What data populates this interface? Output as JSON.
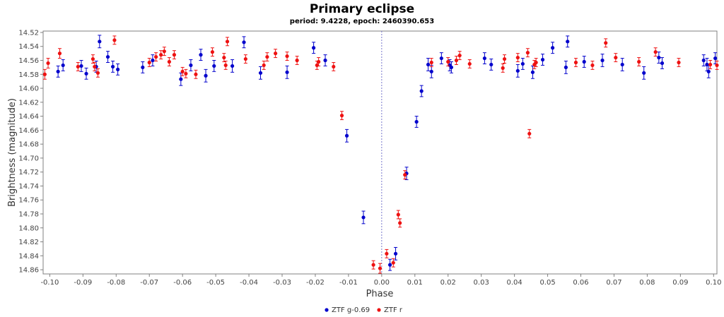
{
  "chart_data": {
    "type": "scatter",
    "title": "Primary eclipse",
    "subtitle": "period: 9.4228, epoch: 2460390.653",
    "xlabel": "Phase",
    "ylabel": "Brightness (magnitude)",
    "xlim": [
      -0.102,
      0.101
    ],
    "ylim": [
      14.866,
      14.518
    ],
    "y_inverted": true,
    "x_ticks": [
      -0.1,
      -0.09,
      -0.08,
      -0.07,
      -0.06,
      -0.05,
      -0.04,
      -0.03,
      -0.02,
      -0.01,
      0.0,
      0.01,
      0.02,
      0.03,
      0.04,
      0.05,
      0.06,
      0.07,
      0.08,
      0.09,
      0.1
    ],
    "x_tick_labels": [
      "-0.10",
      "-0.09",
      "-0.08",
      "-0.07",
      "-0.06",
      "-0.05",
      "-0.04",
      "-0.03",
      "-0.02",
      "-0.01",
      "0.00",
      "0.01",
      "0.02",
      "0.03",
      "0.04",
      "0.05",
      "0.06",
      "0.07",
      "0.08",
      "0.09",
      "0.10"
    ],
    "y_ticks": [
      14.52,
      14.54,
      14.56,
      14.58,
      14.6,
      14.62,
      14.64,
      14.66,
      14.68,
      14.7,
      14.72,
      14.74,
      14.76,
      14.78,
      14.8,
      14.82,
      14.84,
      14.86
    ],
    "y_tick_labels": [
      "14.52",
      "14.54",
      "14.56",
      "14.58",
      "14.60",
      "14.62",
      "14.64",
      "14.66",
      "14.68",
      "14.70",
      "14.72",
      "14.74",
      "14.76",
      "14.78",
      "14.80",
      "14.82",
      "14.84",
      "14.86"
    ],
    "grid": false,
    "reference_line_x": 0.0,
    "legend_position": "bottom-center",
    "series": [
      {
        "name": "ZTF g-0.69",
        "color": "#0000cc",
        "points": [
          {
            "x": -0.0975,
            "y": 14.576,
            "err": 0.008
          },
          {
            "x": -0.096,
            "y": 14.567,
            "err": 0.008
          },
          {
            "x": -0.0905,
            "y": 14.568,
            "err": 0.008
          },
          {
            "x": -0.089,
            "y": 14.579,
            "err": 0.008
          },
          {
            "x": -0.086,
            "y": 14.569,
            "err": 0.008
          },
          {
            "x": -0.085,
            "y": 14.533,
            "err": 0.009
          },
          {
            "x": -0.0825,
            "y": 14.555,
            "err": 0.008
          },
          {
            "x": -0.081,
            "y": 14.569,
            "err": 0.008
          },
          {
            "x": -0.0795,
            "y": 14.573,
            "err": 0.008
          },
          {
            "x": -0.072,
            "y": 14.57,
            "err": 0.008
          },
          {
            "x": -0.069,
            "y": 14.56,
            "err": 0.008
          },
          {
            "x": -0.0605,
            "y": 14.587,
            "err": 0.009
          },
          {
            "x": -0.0575,
            "y": 14.567,
            "err": 0.008
          },
          {
            "x": -0.0545,
            "y": 14.552,
            "err": 0.008
          },
          {
            "x": -0.053,
            "y": 14.582,
            "err": 0.009
          },
          {
            "x": -0.0505,
            "y": 14.568,
            "err": 0.008
          },
          {
            "x": -0.045,
            "y": 14.568,
            "err": 0.009
          },
          {
            "x": -0.0415,
            "y": 14.534,
            "err": 0.008
          },
          {
            "x": -0.0365,
            "y": 14.578,
            "err": 0.009
          },
          {
            "x": -0.0285,
            "y": 14.577,
            "err": 0.009
          },
          {
            "x": -0.0205,
            "y": 14.542,
            "err": 0.008
          },
          {
            "x": -0.017,
            "y": 14.56,
            "err": 0.008
          },
          {
            "x": -0.0105,
            "y": 14.668,
            "err": 0.009
          },
          {
            "x": -0.0055,
            "y": 14.785,
            "err": 0.009
          },
          {
            "x": 0.0025,
            "y": 14.853,
            "err": 0.008
          },
          {
            "x": 0.0042,
            "y": 14.837,
            "err": 0.009
          },
          {
            "x": 0.0075,
            "y": 14.722,
            "err": 0.009
          },
          {
            "x": 0.0105,
            "y": 14.648,
            "err": 0.008
          },
          {
            "x": 0.012,
            "y": 14.604,
            "err": 0.008
          },
          {
            "x": 0.014,
            "y": 14.566,
            "err": 0.009
          },
          {
            "x": 0.015,
            "y": 14.576,
            "err": 0.009
          },
          {
            "x": 0.018,
            "y": 14.557,
            "err": 0.008
          },
          {
            "x": 0.0205,
            "y": 14.567,
            "err": 0.008
          },
          {
            "x": 0.021,
            "y": 14.57,
            "err": 0.008
          },
          {
            "x": 0.031,
            "y": 14.557,
            "err": 0.008
          },
          {
            "x": 0.033,
            "y": 14.566,
            "err": 0.008
          },
          {
            "x": 0.041,
            "y": 14.575,
            "err": 0.009
          },
          {
            "x": 0.0425,
            "y": 14.565,
            "err": 0.008
          },
          {
            "x": 0.0455,
            "y": 14.577,
            "err": 0.009
          },
          {
            "x": 0.0485,
            "y": 14.559,
            "err": 0.008
          },
          {
            "x": 0.0515,
            "y": 14.542,
            "err": 0.008
          },
          {
            "x": 0.0555,
            "y": 14.57,
            "err": 0.009
          },
          {
            "x": 0.056,
            "y": 14.533,
            "err": 0.008
          },
          {
            "x": 0.061,
            "y": 14.562,
            "err": 0.008
          },
          {
            "x": 0.0665,
            "y": 14.56,
            "err": 0.009
          },
          {
            "x": 0.0725,
            "y": 14.566,
            "err": 0.009
          },
          {
            "x": 0.079,
            "y": 14.578,
            "err": 0.009
          },
          {
            "x": 0.0835,
            "y": 14.556,
            "err": 0.008
          },
          {
            "x": 0.0845,
            "y": 14.564,
            "err": 0.008
          },
          {
            "x": 0.097,
            "y": 14.56,
            "err": 0.008
          },
          {
            "x": 0.098,
            "y": 14.566,
            "err": 0.009
          },
          {
            "x": 0.0985,
            "y": 14.576,
            "err": 0.009
          },
          {
            "x": 0.1005,
            "y": 14.557,
            "err": 0.008
          }
        ]
      },
      {
        "name": "ZTF r",
        "color": "#ee1111",
        "points": [
          {
            "x": -0.1015,
            "y": 14.58,
            "err": 0.007
          },
          {
            "x": -0.1005,
            "y": 14.564,
            "err": 0.007
          },
          {
            "x": -0.097,
            "y": 14.55,
            "err": 0.007
          },
          {
            "x": -0.0915,
            "y": 14.569,
            "err": 0.006
          },
          {
            "x": -0.087,
            "y": 14.558,
            "err": 0.006
          },
          {
            "x": -0.0865,
            "y": 14.569,
            "err": 0.006
          },
          {
            "x": -0.0855,
            "y": 14.578,
            "err": 0.006
          },
          {
            "x": -0.0805,
            "y": 14.531,
            "err": 0.006
          },
          {
            "x": -0.07,
            "y": 14.563,
            "err": 0.006
          },
          {
            "x": -0.068,
            "y": 14.555,
            "err": 0.006
          },
          {
            "x": -0.0665,
            "y": 14.552,
            "err": 0.006
          },
          {
            "x": -0.0655,
            "y": 14.547,
            "err": 0.006
          },
          {
            "x": -0.064,
            "y": 14.562,
            "err": 0.006
          },
          {
            "x": -0.0625,
            "y": 14.552,
            "err": 0.006
          },
          {
            "x": -0.06,
            "y": 14.576,
            "err": 0.006
          },
          {
            "x": -0.059,
            "y": 14.579,
            "err": 0.006
          },
          {
            "x": -0.056,
            "y": 14.58,
            "err": 0.006
          },
          {
            "x": -0.051,
            "y": 14.548,
            "err": 0.006
          },
          {
            "x": -0.0475,
            "y": 14.556,
            "err": 0.006
          },
          {
            "x": -0.047,
            "y": 14.567,
            "err": 0.006
          },
          {
            "x": -0.0465,
            "y": 14.533,
            "err": 0.006
          },
          {
            "x": -0.041,
            "y": 14.558,
            "err": 0.006
          },
          {
            "x": -0.0355,
            "y": 14.567,
            "err": 0.006
          },
          {
            "x": -0.0345,
            "y": 14.555,
            "err": 0.006
          },
          {
            "x": -0.032,
            "y": 14.55,
            "err": 0.006
          },
          {
            "x": -0.0285,
            "y": 14.554,
            "err": 0.006
          },
          {
            "x": -0.0255,
            "y": 14.56,
            "err": 0.006
          },
          {
            "x": -0.0195,
            "y": 14.567,
            "err": 0.006
          },
          {
            "x": -0.019,
            "y": 14.562,
            "err": 0.006
          },
          {
            "x": -0.0145,
            "y": 14.569,
            "err": 0.006
          },
          {
            "x": -0.012,
            "y": 14.639,
            "err": 0.006
          },
          {
            "x": -0.0025,
            "y": 14.853,
            "err": 0.006
          },
          {
            "x": -0.0005,
            "y": 14.858,
            "err": 0.007
          },
          {
            "x": 0.0015,
            "y": 14.837,
            "err": 0.006
          },
          {
            "x": 0.0035,
            "y": 14.85,
            "err": 0.006
          },
          {
            "x": 0.005,
            "y": 14.781,
            "err": 0.006
          },
          {
            "x": 0.0055,
            "y": 14.793,
            "err": 0.006
          },
          {
            "x": 0.007,
            "y": 14.724,
            "err": 0.006
          },
          {
            "x": 0.015,
            "y": 14.563,
            "err": 0.006
          },
          {
            "x": 0.02,
            "y": 14.562,
            "err": 0.006
          },
          {
            "x": 0.0225,
            "y": 14.56,
            "err": 0.006
          },
          {
            "x": 0.0235,
            "y": 14.553,
            "err": 0.006
          },
          {
            "x": 0.0265,
            "y": 14.565,
            "err": 0.006
          },
          {
            "x": 0.0365,
            "y": 14.571,
            "err": 0.006
          },
          {
            "x": 0.037,
            "y": 14.558,
            "err": 0.006
          },
          {
            "x": 0.041,
            "y": 14.556,
            "err": 0.006
          },
          {
            "x": 0.044,
            "y": 14.549,
            "err": 0.006
          },
          {
            "x": 0.0445,
            "y": 14.665,
            "err": 0.006
          },
          {
            "x": 0.046,
            "y": 14.566,
            "err": 0.006
          },
          {
            "x": 0.0465,
            "y": 14.563,
            "err": 0.006
          },
          {
            "x": 0.0585,
            "y": 14.563,
            "err": 0.006
          },
          {
            "x": 0.0635,
            "y": 14.567,
            "err": 0.006
          },
          {
            "x": 0.0675,
            "y": 14.535,
            "err": 0.006
          },
          {
            "x": 0.0705,
            "y": 14.556,
            "err": 0.006
          },
          {
            "x": 0.0775,
            "y": 14.562,
            "err": 0.006
          },
          {
            "x": 0.0825,
            "y": 14.548,
            "err": 0.006
          },
          {
            "x": 0.0895,
            "y": 14.563,
            "err": 0.006
          },
          {
            "x": 0.099,
            "y": 14.566,
            "err": 0.006
          },
          {
            "x": 0.101,
            "y": 14.567,
            "err": 0.006
          }
        ]
      }
    ]
  }
}
